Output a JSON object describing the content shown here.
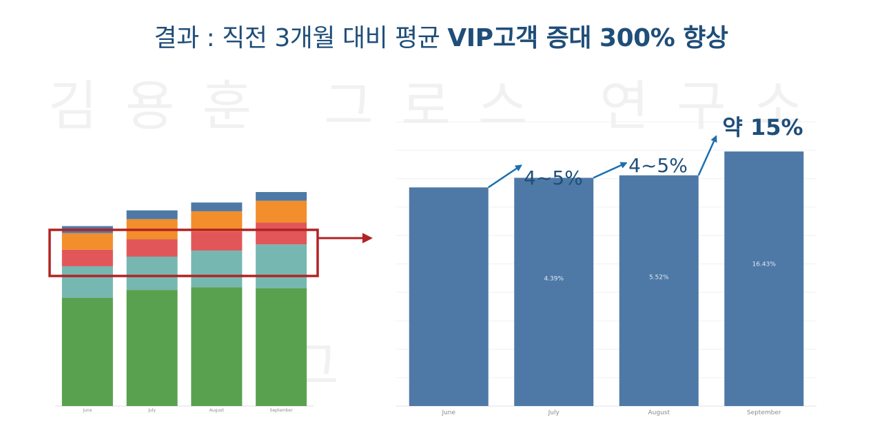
{
  "title": {
    "prefix": "결과 : 직전 3개월 대비 평균 ",
    "emph": "VIP고객 증대 300% 향상"
  },
  "watermark": {
    "text": "김용훈 그로스 연구소"
  },
  "callouts": [
    "4~5%",
    "4~5%",
    "약 15%"
  ],
  "colors": {
    "title": "#1f4e79",
    "bar": "#4e79a7",
    "highlight": "#b22222",
    "arrow": "#1a6fb0",
    "stack": [
      "#59a14f",
      "#76b7b2",
      "#e15759",
      "#f28e2b",
      "#4e79a7"
    ]
  },
  "chart_data": [
    {
      "type": "bar",
      "stacked": true,
      "categories": [
        "June",
        "July",
        "August",
        "September"
      ],
      "series": [
        {
          "values": [
            124,
            133,
            136,
            135
          ]
        },
        {
          "values": [
            36,
            38,
            42,
            50
          ]
        },
        {
          "values": [
            19,
            20,
            22,
            25
          ]
        },
        {
          "values": [
            19,
            23,
            23,
            25
          ]
        },
        {
          "values": [
            8,
            10,
            10,
            10
          ]
        }
      ],
      "ylim": [
        0,
        260
      ],
      "grid": false
    },
    {
      "type": "bar",
      "categories": [
        "June",
        "July",
        "August",
        "September"
      ],
      "values": [
        100,
        104.39,
        105.52,
        116.43
      ],
      "data_labels": [
        "",
        "4.39%",
        "5.52%",
        "16.43%"
      ],
      "ylim": [
        0,
        130
      ],
      "grid": true
    }
  ]
}
